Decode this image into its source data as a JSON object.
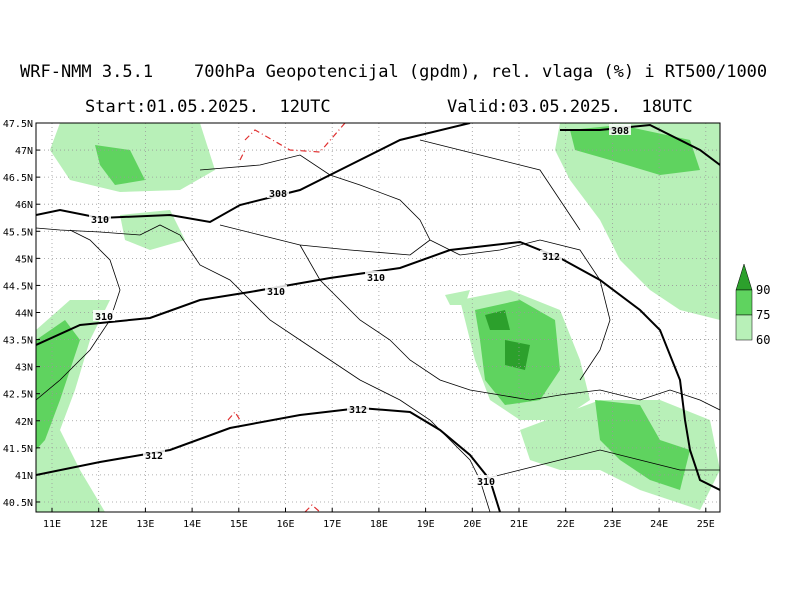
{
  "header": {
    "title": "WRF-NMM 3.5.1    700hPa Geopotencijal (gpdm), rel. vlaga (%) i RT500/1000",
    "start": "Start:01.05.2025.  12UTC",
    "valid": "Valid:03.05.2025.  18UTC"
  },
  "map": {
    "lat_labels": [
      "47.5N",
      "47N",
      "46.5N",
      "46N",
      "45.5N",
      "45N",
      "44.5N",
      "44N",
      "43.5N",
      "43N",
      "42.5N",
      "42N",
      "41.5N",
      "41N",
      "40.5N"
    ],
    "lon_labels": [
      "11E",
      "12E",
      "13E",
      "14E",
      "15E",
      "16E",
      "17E",
      "18E",
      "19E",
      "20E",
      "21E",
      "22E",
      "23E",
      "24E",
      "25E"
    ],
    "contour_labels": [
      "308",
      "308",
      "310",
      "310",
      "310",
      "310",
      "312",
      "312",
      "312",
      "310"
    ]
  },
  "legend": {
    "entries": [
      {
        "label": "90",
        "color": "#2ca02c"
      },
      {
        "label": "75",
        "color": "#5fd35f"
      },
      {
        "label": "60",
        "color": "#b8f0b8"
      }
    ]
  }
}
